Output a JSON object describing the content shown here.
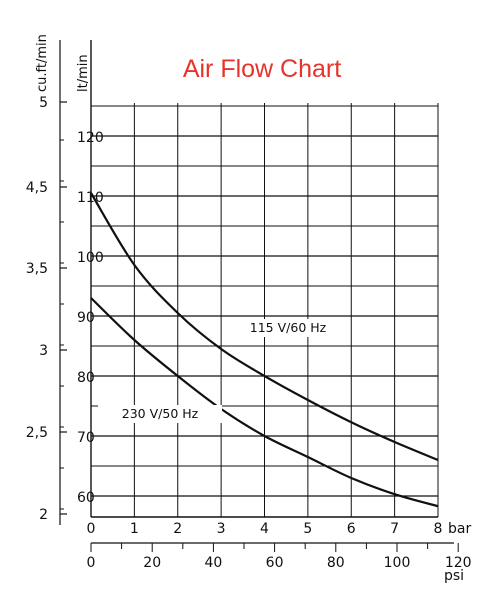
{
  "chart_data": {
    "type": "line",
    "title": "Air Flow Chart",
    "grid": true,
    "x_axis_primary": {
      "label": "bar",
      "range": [
        0,
        8
      ],
      "ticks": [
        0,
        1,
        2,
        3,
        4,
        5,
        6,
        7,
        8
      ]
    },
    "x_axis_secondary": {
      "label": "psi",
      "range": [
        0,
        120
      ],
      "tick_labels": [
        0,
        20,
        40,
        60,
        80,
        100,
        120
      ]
    },
    "y_axis_primary": {
      "label": "lt/min",
      "range": [
        55,
        125
      ],
      "tick_labels": [
        60,
        70,
        80,
        90,
        100,
        110,
        120
      ]
    },
    "y_axis_secondary": {
      "label": "cu.ft/min",
      "tick_labels": [
        "2",
        "2,5",
        "3",
        "3,5",
        "4,5",
        "5"
      ]
    },
    "x": [
      0,
      1,
      2,
      3,
      4,
      5,
      6,
      7,
      8
    ],
    "series": [
      {
        "name": "115 V/60 Hz",
        "values": [
          110.5,
          98.5,
          90.5,
          84.5,
          80,
          76,
          72.3,
          69,
          66
        ]
      },
      {
        "name": "230 V/50 Hz",
        "values": [
          93,
          86,
          80,
          74.5,
          70,
          66.5,
          63,
          60.3,
          58.3
        ]
      }
    ]
  },
  "colors": {
    "title": "#e8322b",
    "lines": "#111111"
  }
}
